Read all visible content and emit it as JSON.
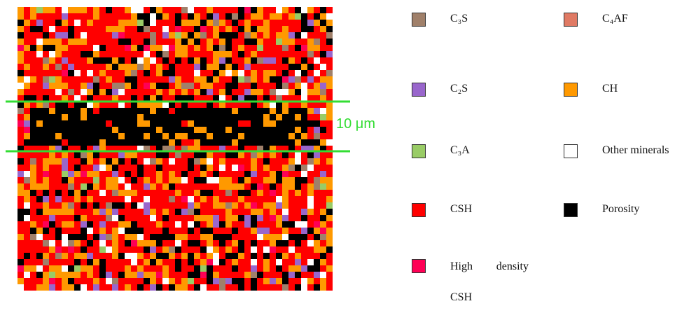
{
  "scale_label": "10 μm",
  "legend": [
    {
      "label": "C₃S",
      "color": "#a0806a"
    },
    {
      "label": "C₄AF",
      "color": "#e07a64"
    },
    {
      "label": "C₂S",
      "color": "#9966cc"
    },
    {
      "label": "CH",
      "color": "#ff9900"
    },
    {
      "label": "C₃A",
      "color": "#99cc66"
    },
    {
      "label": "Other minerals",
      "color": "#ffffff"
    },
    {
      "label": "CSH",
      "color": "#ff0000"
    },
    {
      "label": "Porosity",
      "color": "#000000"
    },
    {
      "label": "High density CSH",
      "color": "#ff0055"
    }
  ]
}
